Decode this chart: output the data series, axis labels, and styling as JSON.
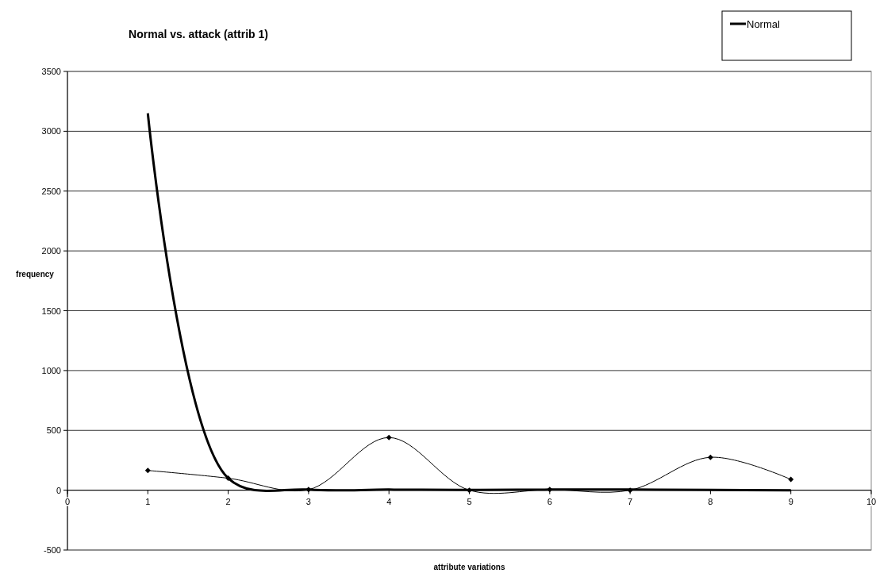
{
  "chart_data": {
    "type": "line",
    "title": "Normal vs. attack (attrib 1)",
    "xlabel": "attribute variations",
    "ylabel": "frequency",
    "x": [
      1,
      2,
      3,
      4,
      5,
      6,
      7,
      8,
      9
    ],
    "series": [
      {
        "name": "Normal",
        "color": "#000000",
        "values": [
          3150,
          100,
          5,
          5,
          2,
          5,
          5,
          2,
          0
        ],
        "marker": "none"
      },
      {
        "color": "#000000",
        "values": [
          165,
          100,
          5,
          440,
          0,
          5,
          0,
          275,
          90
        ],
        "marker": "diamond"
      }
    ],
    "xlim": [
      0,
      10
    ],
    "xticks": [
      0,
      1,
      2,
      3,
      4,
      5,
      6,
      7,
      8,
      9,
      10
    ],
    "ylim": [
      -500,
      3500
    ],
    "yticks": [
      -500,
      0,
      500,
      1000,
      1500,
      2000,
      2500,
      3000,
      3500
    ],
    "grid": "y",
    "legend": "top right",
    "line_style": "solid"
  }
}
